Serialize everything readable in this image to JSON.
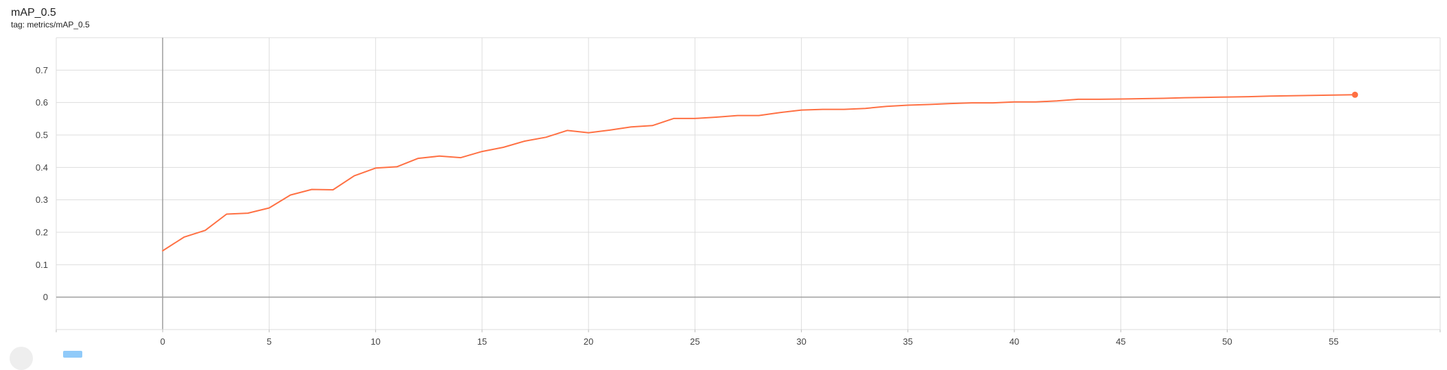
{
  "header": {
    "title": "mAP_0.5",
    "tag": "tag: metrics/mAP_0.5"
  },
  "colors": {
    "series": "#ff7043",
    "grid": "#dddddd",
    "axis": "#9e9e9e",
    "text": "#424242"
  },
  "chart_data": {
    "type": "line",
    "title": "mAP_0.5",
    "xlabel": "",
    "ylabel": "",
    "xlim": [
      -5,
      60
    ],
    "ylim": [
      -0.1,
      0.8
    ],
    "xticks": [
      0,
      5,
      10,
      15,
      20,
      25,
      30,
      35,
      40,
      45,
      50,
      55
    ],
    "yticks": [
      0,
      0.1,
      0.2,
      0.3,
      0.4,
      0.5,
      0.6,
      0.7
    ],
    "grid": true,
    "legend": "none",
    "series": [
      {
        "x": [
          0,
          1,
          2,
          3,
          4,
          5,
          6,
          7,
          8,
          9,
          10,
          11,
          12,
          13,
          14,
          15,
          16,
          17,
          18,
          19,
          20,
          21,
          22,
          23,
          24,
          25,
          26,
          27,
          28,
          29,
          30,
          31,
          32,
          33,
          34,
          35,
          36,
          37,
          38,
          39,
          40,
          41,
          42,
          43,
          44,
          45,
          46,
          47,
          48,
          49,
          50,
          51,
          52,
          53,
          54,
          55,
          56
        ],
        "values": [
          0.143,
          0.185,
          0.206,
          0.256,
          0.259,
          0.275,
          0.315,
          0.332,
          0.331,
          0.374,
          0.398,
          0.402,
          0.428,
          0.435,
          0.43,
          0.449,
          0.462,
          0.481,
          0.493,
          0.514,
          0.507,
          0.515,
          0.525,
          0.529,
          0.551,
          0.551,
          0.555,
          0.56,
          0.56,
          0.569,
          0.577,
          0.579,
          0.579,
          0.582,
          0.588,
          0.592,
          0.594,
          0.597,
          0.599,
          0.599,
          0.602,
          0.602,
          0.605,
          0.61,
          0.61,
          0.611,
          0.612,
          0.613,
          0.615,
          0.616,
          0.617,
          0.618,
          0.62,
          0.621,
          0.622,
          0.623,
          0.624
        ]
      }
    ]
  }
}
